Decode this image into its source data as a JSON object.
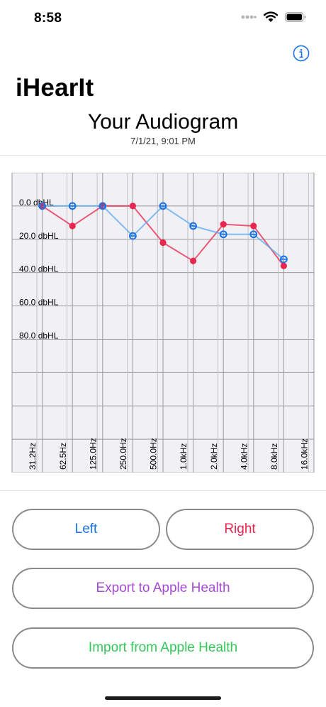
{
  "status_bar": {
    "time": "8:58",
    "icons": [
      "signal-dots-icon",
      "wifi-icon",
      "battery-icon"
    ]
  },
  "header": {
    "info_icon": "info-circle-icon",
    "app_title": "iHearIt",
    "audiogram_title": "Your Audiogram",
    "date": "7/1/21, 9:01 PM"
  },
  "chart_data": {
    "type": "line",
    "x_axis": {
      "labels": [
        "31.2Hz",
        "62.5Hz",
        "125.0Hz",
        "250.0Hz",
        "500.0Hz",
        "1.0kHz",
        "2.0kHz",
        "4.0kHz",
        "8.0kHz",
        "16.0kHz"
      ]
    },
    "y_axis": {
      "labels": [
        "0.0 dbHL",
        "20.0 dbHL",
        "40.0 dbHL",
        "60.0 dbHL",
        "80.0 dbHL"
      ],
      "range": [
        -20,
        160
      ],
      "inverted": true
    },
    "x_positions": [
      62.5,
      125,
      250,
      500,
      707,
      1000,
      1414,
      2000,
      2828,
      4000,
      5657,
      8000,
      11314,
      16000
    ],
    "series": [
      {
        "color": "#5aaaf0",
        "marker": "open-circle",
        "values": [
          0,
          0,
          0,
          18,
          0,
          12,
          17,
          17,
          32
        ]
      },
      {
        "color": "#e8264e",
        "marker": "filled-circle",
        "values": [
          0,
          12,
          0,
          0,
          22,
          33,
          11,
          12,
          36
        ]
      }
    ],
    "grid": true
  },
  "buttons": {
    "left": "Left",
    "right": "Right",
    "export": "Export to Apple Health",
    "import": "Import from Apple Health"
  },
  "colors": {
    "left": "#1a73e8",
    "right": "#e8264e",
    "export": "#a64ad6",
    "import": "#34c759",
    "left_series": "#5aaaf0",
    "right_series": "#e8264e"
  }
}
